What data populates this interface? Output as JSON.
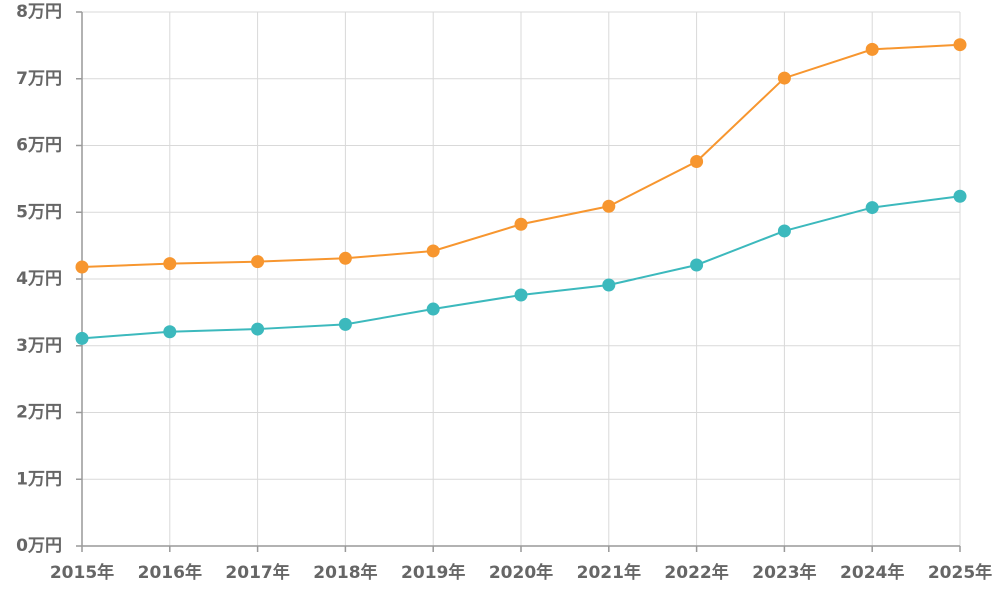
{
  "chart_data": {
    "type": "line",
    "title": "",
    "xlabel": "",
    "ylabel": "",
    "categories": [
      "2015年",
      "2016年",
      "2017年",
      "2018年",
      "2019年",
      "2020年",
      "2021年",
      "2022年",
      "2023年",
      "2024年",
      "2025年"
    ],
    "y_tick_labels": [
      "0万円",
      "1万円",
      "2万円",
      "3万円",
      "4万円",
      "5万円",
      "6万円",
      "7万円",
      "8万円"
    ],
    "ylim": [
      0,
      80000
    ],
    "y_tick_step": 10000,
    "grid": true,
    "legend": "none",
    "series": [
      {
        "color": "#f7962f",
        "values": [
          41800,
          42300,
          42600,
          43100,
          44200,
          48200,
          50900,
          57600,
          70100,
          74400,
          75100
        ]
      },
      {
        "color": "#3cb9bd",
        "values": [
          31100,
          32100,
          32500,
          33200,
          35500,
          37600,
          39100,
          42100,
          47200,
          50700,
          52400
        ]
      }
    ]
  }
}
